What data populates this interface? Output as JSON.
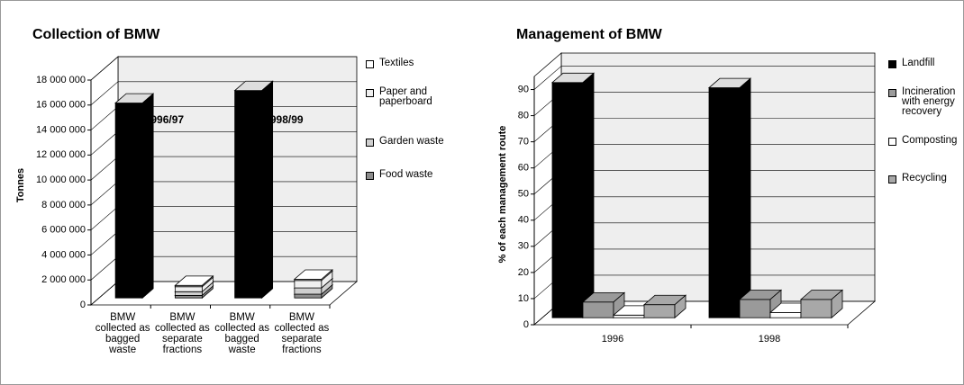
{
  "chart_data": [
    {
      "type": "bar3d",
      "title": "Collection of BMW",
      "y_label": "Tonnes",
      "categories": [
        "BMW collected as bagged waste",
        "BMW collected as separate fractions",
        "BMW collected as bagged waste",
        "BMW collected as separate fractions"
      ],
      "annotations": [
        "1996/97",
        "1998/99"
      ],
      "values": [
        15600000,
        null,
        16600000,
        null
      ],
      "color": "#000000",
      "series": [
        {
          "name": "Food waste",
          "color": "#8c8c8c",
          "values": [
            null,
            200000,
            null,
            300000
          ]
        },
        {
          "name": "Garden waste",
          "color": "#cfcfcf",
          "values": [
            null,
            300000,
            null,
            500000
          ]
        },
        {
          "name": "Paper and paperboard",
          "color": "#efefef",
          "values": [
            null,
            400000,
            null,
            600000
          ]
        },
        {
          "name": "Textiles",
          "color": "#ffffff",
          "values": [
            null,
            100000,
            null,
            100000
          ]
        }
      ],
      "ylim": [
        0,
        18000000
      ],
      "yticks": [
        {
          "value": 0,
          "label": "0"
        },
        {
          "value": 2000000,
          "label": "2 000 000"
        },
        {
          "value": 4000000,
          "label": "4 000 000"
        },
        {
          "value": 6000000,
          "label": "6 000 000"
        },
        {
          "value": 8000000,
          "label": "8 000 000"
        },
        {
          "value": 10000000,
          "label": "10 000 000"
        },
        {
          "value": 12000000,
          "label": "12 000 000"
        },
        {
          "value": 14000000,
          "label": "14 000 000"
        },
        {
          "value": 16000000,
          "label": "16 000 000"
        },
        {
          "value": 18000000,
          "label": "18 000 000"
        }
      ],
      "grid": true
    },
    {
      "type": "bar3d-grouped",
      "title": "Management of BMW",
      "y_label": "% of each management route",
      "categories": [
        "1996",
        "1998"
      ],
      "series": [
        {
          "name": "Landfill",
          "color": "#000000",
          "values": [
            90,
            88
          ]
        },
        {
          "name": "Incineration with energy recovery",
          "color": "#9a9a9a",
          "values": [
            6,
            7
          ]
        },
        {
          "name": "Composting",
          "color": "#ffffff",
          "values": [
            1,
            2
          ]
        },
        {
          "name": "Recycling",
          "color": "#a8a8a8",
          "values": [
            5,
            7
          ]
        }
      ],
      "ylim": [
        0,
        95
      ],
      "yticks": [
        0,
        10,
        20,
        30,
        40,
        50,
        60,
        70,
        80,
        90
      ],
      "grid": true
    }
  ]
}
